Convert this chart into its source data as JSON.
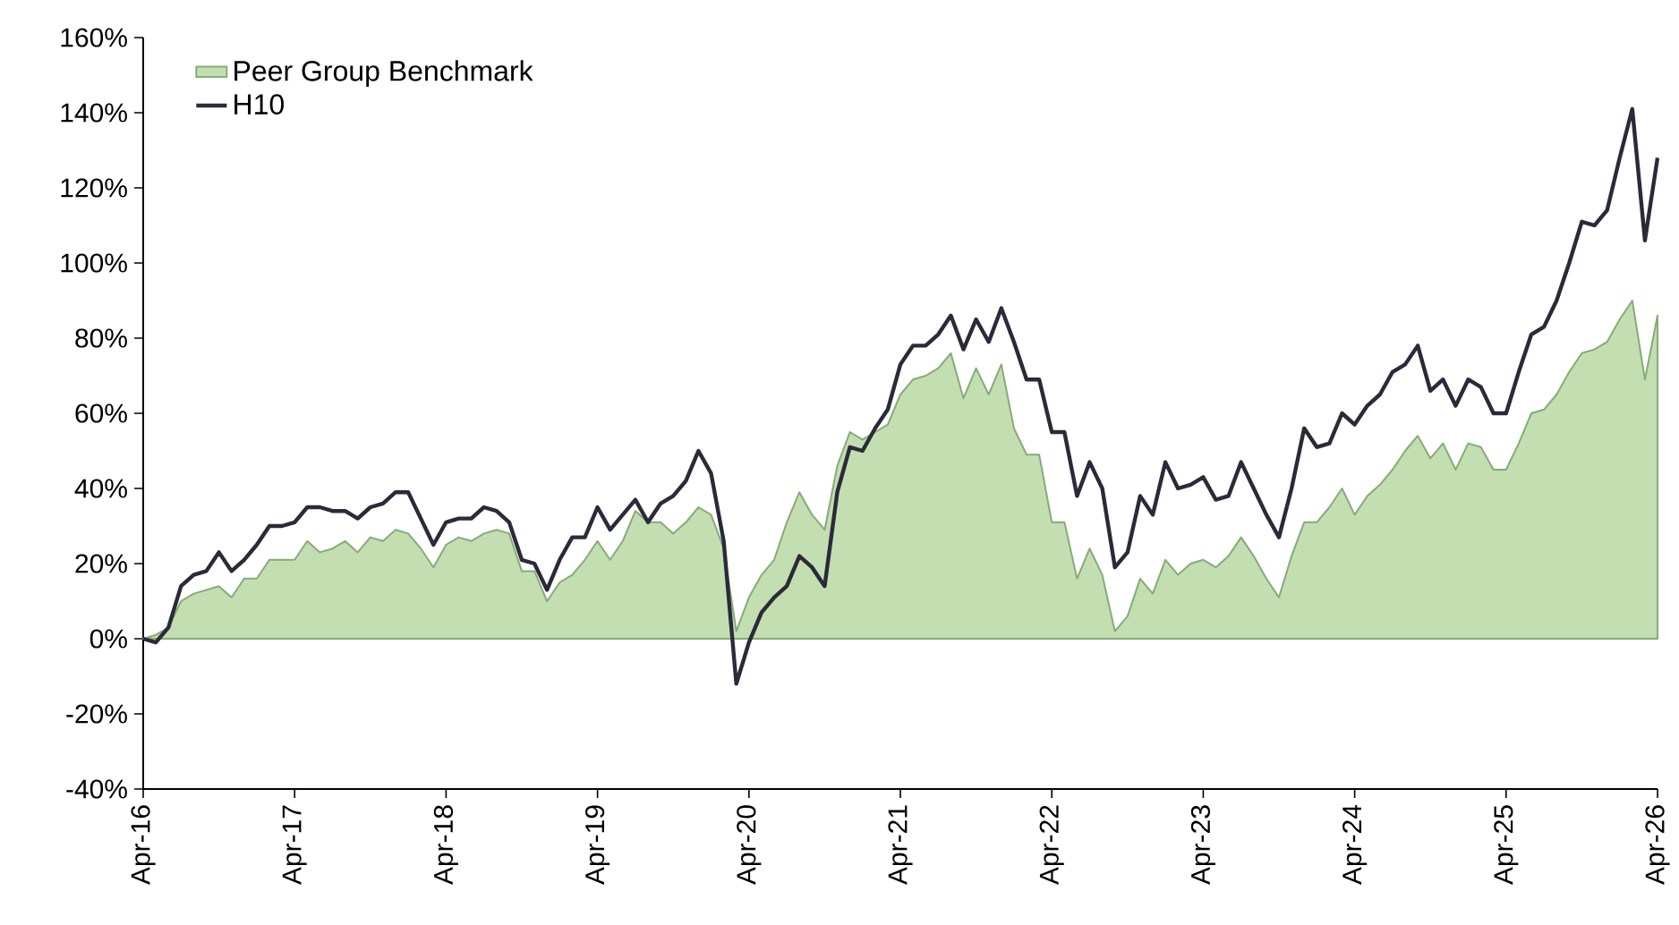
{
  "chart_data": {
    "type": "line",
    "x": [
      "2016-04",
      "2016-05",
      "2016-06",
      "2016-07",
      "2016-08",
      "2016-09",
      "2016-10",
      "2016-11",
      "2016-12",
      "2017-01",
      "2017-02",
      "2017-03",
      "2017-04",
      "2017-05",
      "2017-06",
      "2017-07",
      "2017-08",
      "2017-09",
      "2017-10",
      "2017-11",
      "2017-12",
      "2018-01",
      "2018-02",
      "2018-03",
      "2018-04",
      "2018-05",
      "2018-06",
      "2018-07",
      "2018-08",
      "2018-09",
      "2018-10",
      "2018-11",
      "2018-12",
      "2019-01",
      "2019-02",
      "2019-03",
      "2019-04",
      "2019-05",
      "2019-06",
      "2019-07",
      "2019-08",
      "2019-09",
      "2019-10",
      "2019-11",
      "2019-12",
      "2020-01",
      "2020-02",
      "2020-03",
      "2020-04",
      "2020-05",
      "2020-06",
      "2020-07",
      "2020-08",
      "2020-09",
      "2020-10",
      "2020-11",
      "2020-12",
      "2021-01",
      "2021-02",
      "2021-03",
      "2021-04",
      "2021-05",
      "2021-06",
      "2021-07",
      "2021-08",
      "2021-09",
      "2021-10",
      "2021-11",
      "2021-12",
      "2022-01",
      "2022-02",
      "2022-03",
      "2022-04",
      "2022-05",
      "2022-06",
      "2022-07",
      "2022-08",
      "2022-09",
      "2022-10",
      "2022-11",
      "2022-12",
      "2023-01",
      "2023-02",
      "2023-03",
      "2023-04",
      "2023-05",
      "2023-06",
      "2023-07",
      "2023-08",
      "2023-09",
      "2023-10",
      "2023-11",
      "2023-12",
      "2024-01",
      "2024-02",
      "2024-03",
      "2024-04",
      "2024-05",
      "2024-06",
      "2024-07",
      "2024-08",
      "2024-09",
      "2024-10",
      "2024-11",
      "2024-12",
      "2025-01",
      "2025-02",
      "2025-03",
      "2025-04",
      "2025-05",
      "2025-06",
      "2025-07",
      "2025-08",
      "2025-09",
      "2025-10",
      "2025-11",
      "2025-12",
      "2026-01",
      "2026-02",
      "2026-03",
      "2026-04"
    ],
    "series": [
      {
        "name": "Peer Group Benchmark",
        "type": "area",
        "color": "#c3deb0",
        "values": [
          0,
          1,
          3,
          10,
          12,
          13,
          14,
          11,
          16,
          16,
          21,
          21,
          21,
          26,
          23,
          24,
          26,
          23,
          27,
          26,
          29,
          28,
          24,
          19,
          25,
          27,
          26,
          28,
          29,
          28,
          18,
          18,
          10,
          15,
          17,
          21,
          26,
          21,
          26,
          34,
          31,
          31,
          28,
          31,
          35,
          33,
          24,
          2,
          11,
          17,
          21,
          31,
          39,
          33,
          29,
          46,
          55,
          53,
          55,
          57,
          65,
          69,
          70,
          72,
          76,
          64,
          72,
          65,
          73,
          56,
          49,
          49,
          31,
          31,
          16,
          24,
          17,
          2,
          6,
          16,
          12,
          21,
          17,
          20,
          21,
          19,
          22,
          27,
          22,
          16,
          11,
          22,
          31,
          31,
          35,
          40,
          33,
          38,
          41,
          45,
          50,
          54,
          48,
          52,
          45,
          52,
          51,
          45,
          45,
          52,
          60,
          61,
          65,
          71,
          76,
          77,
          79,
          85,
          90,
          69,
          86
        ]
      },
      {
        "name": "H10",
        "color": "#2b2a3a",
        "values": [
          0,
          -1,
          3,
          14,
          17,
          18,
          23,
          18,
          21,
          25,
          30,
          30,
          31,
          35,
          35,
          34,
          34,
          32,
          35,
          36,
          39,
          39,
          32,
          25,
          31,
          32,
          32,
          35,
          34,
          31,
          21,
          20,
          13,
          21,
          27,
          27,
          35,
          29,
          33,
          37,
          31,
          36,
          38,
          42,
          50,
          44,
          26,
          -12,
          -1,
          7,
          11,
          14,
          22,
          19,
          14,
          39,
          51,
          50,
          56,
          61,
          73,
          78,
          78,
          81,
          86,
          77,
          85,
          79,
          88,
          79,
          69,
          69,
          55,
          55,
          38,
          47,
          40,
          19,
          23,
          38,
          33,
          47,
          40,
          41,
          43,
          37,
          38,
          47,
          40,
          33,
          27,
          40,
          56,
          51,
          52,
          60,
          57,
          62,
          65,
          71,
          73,
          78,
          66,
          69,
          62,
          69,
          67,
          60,
          60,
          71,
          81,
          83,
          90,
          100,
          111,
          110,
          114,
          128,
          141,
          106,
          128
        ]
      }
    ],
    "xlim": [
      "2016-04",
      "2026-04"
    ],
    "xticks": [
      {
        "value": "2016-04",
        "label": "Apr-16"
      },
      {
        "value": "2017-04",
        "label": "Apr-17"
      },
      {
        "value": "2018-04",
        "label": "Apr-18"
      },
      {
        "value": "2019-04",
        "label": "Apr-19"
      },
      {
        "value": "2020-04",
        "label": "Apr-20"
      },
      {
        "value": "2021-04",
        "label": "Apr-21"
      },
      {
        "value": "2022-04",
        "label": "Apr-22"
      },
      {
        "value": "2023-04",
        "label": "Apr-23"
      },
      {
        "value": "2024-04",
        "label": "Apr-24"
      },
      {
        "value": "2025-04",
        "label": "Apr-25"
      },
      {
        "value": "2026-04",
        "label": "Apr-26"
      }
    ],
    "ylim": [
      -40,
      160
    ],
    "yticks": [
      {
        "value": -40,
        "label": "-40%"
      },
      {
        "value": -20,
        "label": "-20%"
      },
      {
        "value": 0,
        "label": "0%"
      },
      {
        "value": 20,
        "label": "20%"
      },
      {
        "value": 40,
        "label": "40%"
      },
      {
        "value": 60,
        "label": "60%"
      },
      {
        "value": 80,
        "label": "80%"
      },
      {
        "value": 100,
        "label": "100%"
      },
      {
        "value": 120,
        "label": "120%"
      },
      {
        "value": 140,
        "label": "140%"
      },
      {
        "value": 160,
        "label": "160%"
      }
    ],
    "grid": false,
    "legend": "top left",
    "marker": "none",
    "line_style": "solid"
  }
}
